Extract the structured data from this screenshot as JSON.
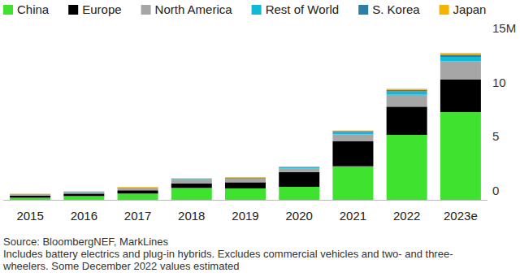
{
  "chart_data": {
    "type": "bar",
    "stacked": true,
    "grid": false,
    "legend": "top",
    "categories": [
      "2015",
      "2016",
      "2017",
      "2018",
      "2019",
      "2020",
      "2021",
      "2022",
      "2023e"
    ],
    "series": [
      {
        "name": "China",
        "color": "#3ee22f",
        "values": [
          0.2,
          0.35,
          0.58,
          1.1,
          1.06,
          1.2,
          3.1,
          6.0,
          8.1
        ]
      },
      {
        "name": "Europe",
        "color": "#000000",
        "values": [
          0.19,
          0.22,
          0.3,
          0.4,
          0.56,
          1.36,
          2.3,
          2.6,
          3.0
        ]
      },
      {
        "name": "North America",
        "color": "#a6a6a6",
        "values": [
          0.12,
          0.16,
          0.2,
          0.36,
          0.33,
          0.33,
          0.65,
          1.1,
          1.7
        ]
      },
      {
        "name": "Rest of World",
        "color": "#12b9d6",
        "values": [
          0.02,
          0.02,
          0.03,
          0.05,
          0.06,
          0.1,
          0.2,
          0.3,
          0.4
        ]
      },
      {
        "name": "S. Korea",
        "color": "#2b7ea6",
        "values": [
          0.01,
          0.01,
          0.02,
          0.03,
          0.04,
          0.05,
          0.1,
          0.15,
          0.2
        ]
      },
      {
        "name": "Japan",
        "color": "#f5b400",
        "values": [
          0.02,
          0.02,
          0.05,
          0.05,
          0.04,
          0.03,
          0.05,
          0.1,
          0.15
        ]
      }
    ],
    "ylim": [
      0,
      15
    ],
    "yticks": [
      0,
      5,
      10,
      {
        "value": 15,
        "label": "15M"
      }
    ],
    "notes": [
      "Source: BloombergNEF, MarkLines",
      "Includes battery electrics and plug-in hybrids. Excludes commercial vehicles and two- and three-",
      "wheelers. Some December 2022 values estimated"
    ]
  }
}
